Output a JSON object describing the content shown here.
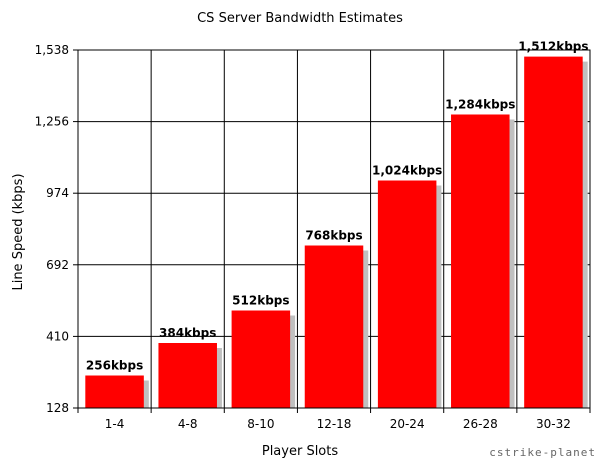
{
  "chart_data": {
    "type": "bar",
    "title": "CS Server Bandwidth Estimates",
    "xlabel": "Player Slots",
    "ylabel": "Line Speed (kbps)",
    "categories": [
      "1-4",
      "4-8",
      "8-10",
      "12-18",
      "20-24",
      "26-28",
      "30-32"
    ],
    "values": [
      256,
      384,
      512,
      768,
      1024,
      1284,
      1512
    ],
    "data_labels": [
      "256kbps",
      "384kbps",
      "512kbps",
      "768kbps",
      "1,024kbps",
      "1,284kbps",
      "1,512kbps"
    ],
    "yticks": [
      128,
      410,
      692,
      974,
      1256,
      1538
    ],
    "ytick_labels": [
      "128",
      "410",
      "692",
      "974",
      "1,256",
      "1,538"
    ],
    "ylim": [
      128,
      1538
    ],
    "grid": true,
    "bar_color": "#ff0000",
    "shadow_color": "#c0c0c0"
  },
  "watermark": "cstrike-planet"
}
